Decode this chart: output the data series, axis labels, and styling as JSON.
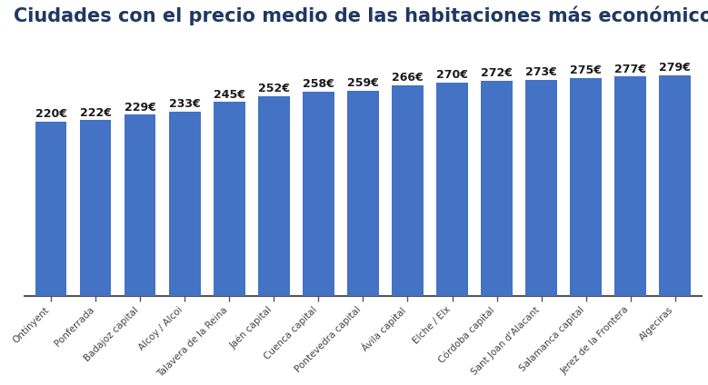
{
  "title": "Ciudades con el precio medio de las habitaciones más económico",
  "categories": [
    "Ontinyent",
    "Ponferrada",
    "Badajoz capital",
    "Alcoy / Alcoi",
    "Talavera de la Reina",
    "Jaén capital",
    "Cuenca capital",
    "Pontevedra capital",
    "Ávila capital",
    "Elche / Elx",
    "Córdoba capital",
    "Sant Joan d'Alacant",
    "Salamanca capital",
    "Jerez de la Frontera",
    "Algeciras"
  ],
  "values": [
    220,
    222,
    229,
    233,
    245,
    252,
    258,
    259,
    266,
    270,
    272,
    273,
    275,
    277,
    279
  ],
  "bar_color": "#4472C4",
  "background_color": "#FFFFFF",
  "title_color": "#1F3864",
  "label_color": "#1a1a1a",
  "ylim_max": 330,
  "title_fontsize": 15,
  "label_fontsize": 9,
  "tick_fontsize": 7.5
}
